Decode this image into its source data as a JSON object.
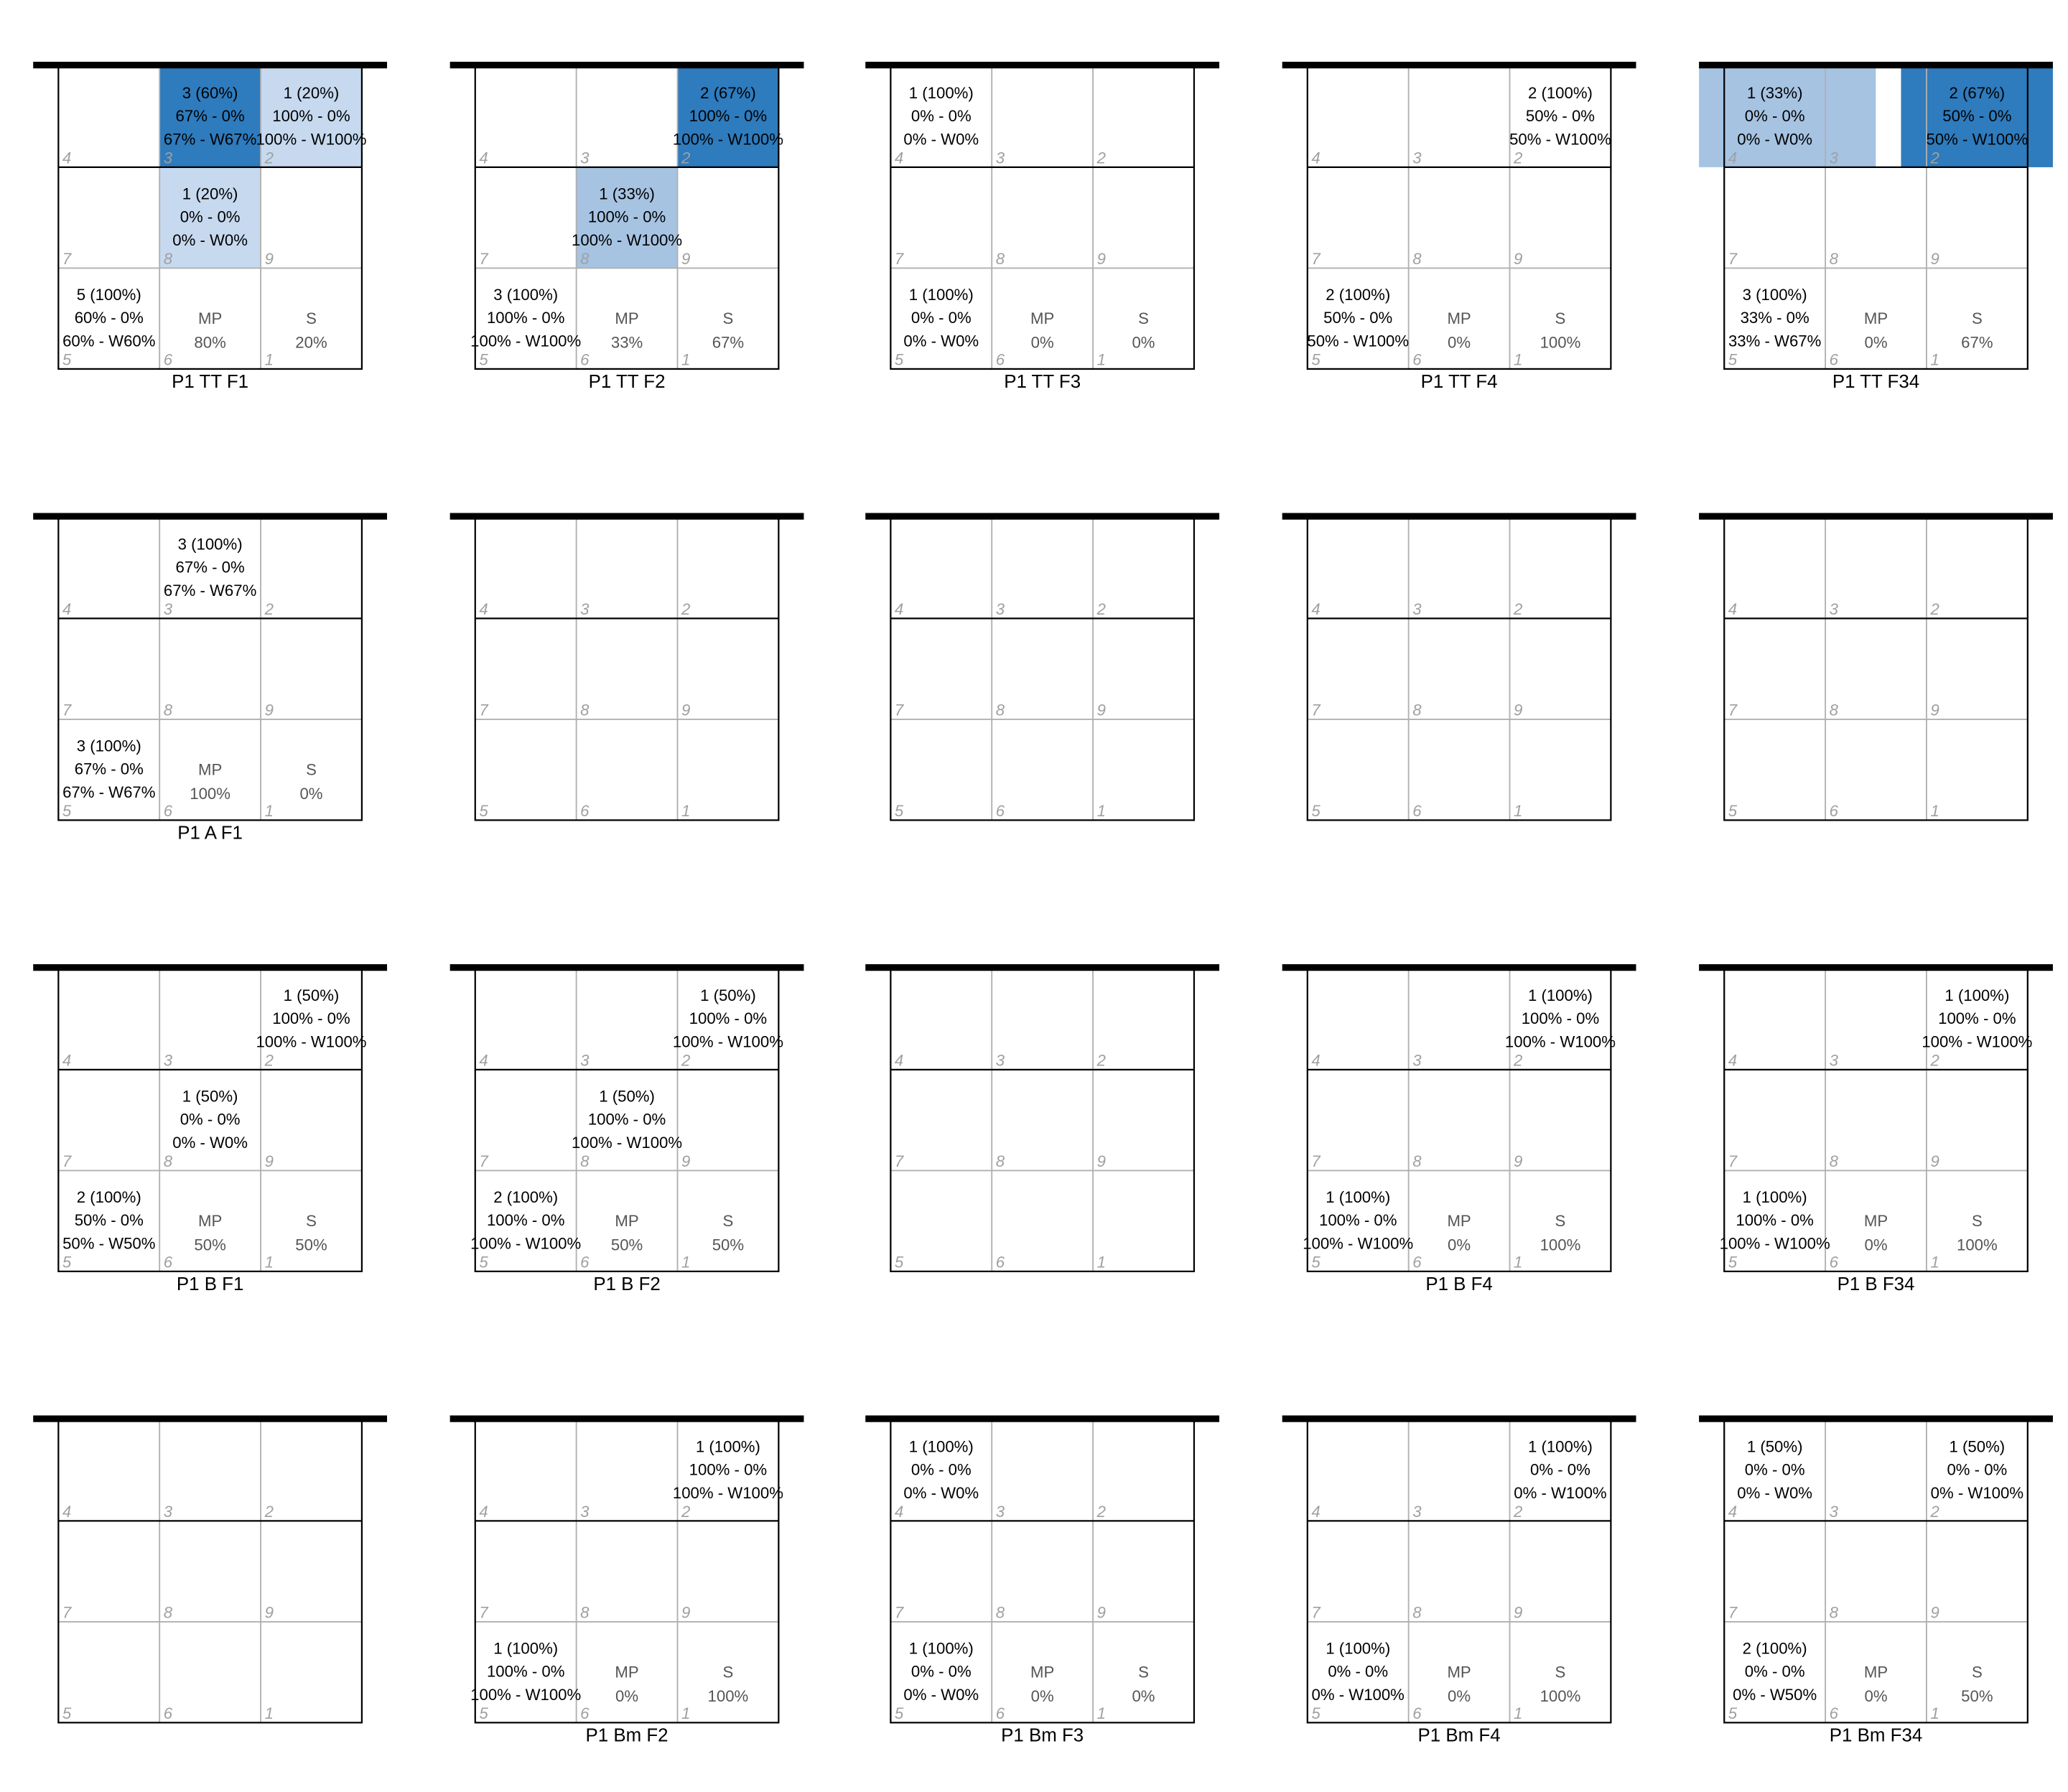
{
  "chart_data": [
    {
      "type": "heatmap",
      "title": "P1 TT F1",
      "cells": {
        "3": {
          "lines": [
            "3 (60%)",
            "67% - 0%",
            "67% - W67%"
          ],
          "shade": "dark"
        },
        "2": {
          "lines": [
            "1 (20%)",
            "100% - 0%",
            "100% - W100%"
          ],
          "shade": "light"
        },
        "8": {
          "lines": [
            "1 (20%)",
            "0% - 0%",
            "0% - W0%"
          ],
          "shade": "light"
        },
        "5": {
          "lines": [
            "5 (100%)",
            "60% - 0%",
            "60% - W60%"
          ]
        }
      },
      "mp": "80%",
      "s": "20%"
    },
    {
      "type": "heatmap",
      "title": "P1 TT F2",
      "cells": {
        "2": {
          "lines": [
            "2 (67%)",
            "100% - 0%",
            "100% - W100%"
          ],
          "shade": "dark"
        },
        "8": {
          "lines": [
            "1 (33%)",
            "100% - 0%",
            "100% - W100%"
          ],
          "shade": "mid"
        },
        "5": {
          "lines": [
            "3 (100%)",
            "100% - 0%",
            "100% - W100%"
          ]
        }
      },
      "mp": "33%",
      "s": "67%"
    },
    {
      "type": "heatmap",
      "title": "P1 TT F3",
      "cells": {
        "4": {
          "lines": [
            "1 (100%)",
            "0% - 0%",
            "0% - W0%"
          ]
        },
        "5": {
          "lines": [
            "1 (100%)",
            "0% - 0%",
            "0% - W0%"
          ]
        }
      },
      "mp": "0%",
      "s": "0%"
    },
    {
      "type": "heatmap",
      "title": "P1 TT F4",
      "cells": {
        "2": {
          "lines": [
            "2 (100%)",
            "50% - 0%",
            "50% - W100%"
          ]
        },
        "5": {
          "lines": [
            "2 (100%)",
            "50% - 0%",
            "50% - W100%"
          ]
        }
      },
      "mp": "0%",
      "s": "100%"
    },
    {
      "type": "heatmap",
      "title": "P1 TT F34",
      "band": true,
      "cells": {
        "4": {
          "lines": [
            "1 (33%)",
            "0% - 0%",
            "0% - W0%"
          ],
          "shade": "mid"
        },
        "2": {
          "lines": [
            "2 (67%)",
            "50% - 0%",
            "50% - W100%"
          ],
          "shade": "dark"
        },
        "5": {
          "lines": [
            "3 (100%)",
            "33% - 0%",
            "33% - W67%"
          ]
        }
      },
      "mp": "0%",
      "s": "67%"
    },
    {
      "type": "heatmap",
      "title": "P1 A F1",
      "cells": {
        "3": {
          "lines": [
            "3 (100%)",
            "67% - 0%",
            "67% - W67%"
          ]
        },
        "5": {
          "lines": [
            "3 (100%)",
            "67% - 0%",
            "67% - W67%"
          ]
        }
      },
      "mp": "100%",
      "s": "0%"
    },
    {
      "type": "heatmap",
      "title": "",
      "cells": {}
    },
    {
      "type": "heatmap",
      "title": "",
      "cells": {}
    },
    {
      "type": "heatmap",
      "title": "",
      "cells": {}
    },
    {
      "type": "heatmap",
      "title": "",
      "cells": {}
    },
    {
      "type": "heatmap",
      "title": "P1 B F1",
      "cells": {
        "2": {
          "lines": [
            "1 (50%)",
            "100% - 0%",
            "100% - W100%"
          ]
        },
        "8": {
          "lines": [
            "1 (50%)",
            "0% - 0%",
            "0% - W0%"
          ]
        },
        "5": {
          "lines": [
            "2 (100%)",
            "50% - 0%",
            "50% - W50%"
          ]
        }
      },
      "mp": "50%",
      "s": "50%"
    },
    {
      "type": "heatmap",
      "title": "P1 B F2",
      "cells": {
        "2": {
          "lines": [
            "1 (50%)",
            "100% - 0%",
            "100% - W100%"
          ]
        },
        "8": {
          "lines": [
            "1 (50%)",
            "100% - 0%",
            "100% - W100%"
          ]
        },
        "5": {
          "lines": [
            "2 (100%)",
            "100% - 0%",
            "100% - W100%"
          ]
        }
      },
      "mp": "50%",
      "s": "50%"
    },
    {
      "type": "heatmap",
      "title": "",
      "cells": {}
    },
    {
      "type": "heatmap",
      "title": "P1 B F4",
      "cells": {
        "2": {
          "lines": [
            "1 (100%)",
            "100% - 0%",
            "100% - W100%"
          ]
        },
        "5": {
          "lines": [
            "1 (100%)",
            "100% - 0%",
            "100% - W100%"
          ]
        }
      },
      "mp": "0%",
      "s": "100%"
    },
    {
      "type": "heatmap",
      "title": "P1 B F34",
      "cells": {
        "2": {
          "lines": [
            "1 (100%)",
            "100% - 0%",
            "100% - W100%"
          ]
        },
        "5": {
          "lines": [
            "1 (100%)",
            "100% - 0%",
            "100% - W100%"
          ]
        }
      },
      "mp": "0%",
      "s": "100%"
    },
    {
      "type": "heatmap",
      "title": "",
      "cells": {}
    },
    {
      "type": "heatmap",
      "title": "P1 Bm F2",
      "cells": {
        "2": {
          "lines": [
            "1 (100%)",
            "100% - 0%",
            "100% - W100%"
          ]
        },
        "5": {
          "lines": [
            "1 (100%)",
            "100% - 0%",
            "100% - W100%"
          ]
        }
      },
      "mp": "0%",
      "s": "100%"
    },
    {
      "type": "heatmap",
      "title": "P1 Bm F3",
      "cells": {
        "4": {
          "lines": [
            "1 (100%)",
            "0% - 0%",
            "0% - W0%"
          ]
        },
        "5": {
          "lines": [
            "1 (100%)",
            "0% - 0%",
            "0% - W0%"
          ]
        }
      },
      "mp": "0%",
      "s": "0%"
    },
    {
      "type": "heatmap",
      "title": "P1 Bm F4",
      "cells": {
        "2": {
          "lines": [
            "1 (100%)",
            "0% - 0%",
            "0% - W100%"
          ]
        },
        "5": {
          "lines": [
            "1 (100%)",
            "0% - 0%",
            "0% - W100%"
          ]
        }
      },
      "mp": "0%",
      "s": "100%"
    },
    {
      "type": "heatmap",
      "title": "P1 Bm F34",
      "cells": {
        "4": {
          "lines": [
            "1 (50%)",
            "0% - 0%",
            "0% - W0%"
          ]
        },
        "2": {
          "lines": [
            "1 (50%)",
            "0% - 0%",
            "0% - W100%"
          ]
        },
        "5": {
          "lines": [
            "2 (100%)",
            "0% - 0%",
            "0% - W50%"
          ]
        }
      },
      "mp": "0%",
      "s": "50%"
    }
  ],
  "zone_numbers": [
    [
      "4",
      "3",
      "2"
    ],
    [
      "7",
      "8",
      "9"
    ],
    [
      "5",
      "6",
      "1"
    ]
  ],
  "labels": {
    "mp": "MP",
    "s": "S"
  },
  "colors": {
    "dark": "#2e7bbd",
    "mid": "#a6c3e2",
    "light": "#c6d9ef",
    "net": "#000000",
    "grid": "#b0b0b0",
    "zone": "#a0a0a0",
    "text": "#000000",
    "muted": "#555555"
  }
}
